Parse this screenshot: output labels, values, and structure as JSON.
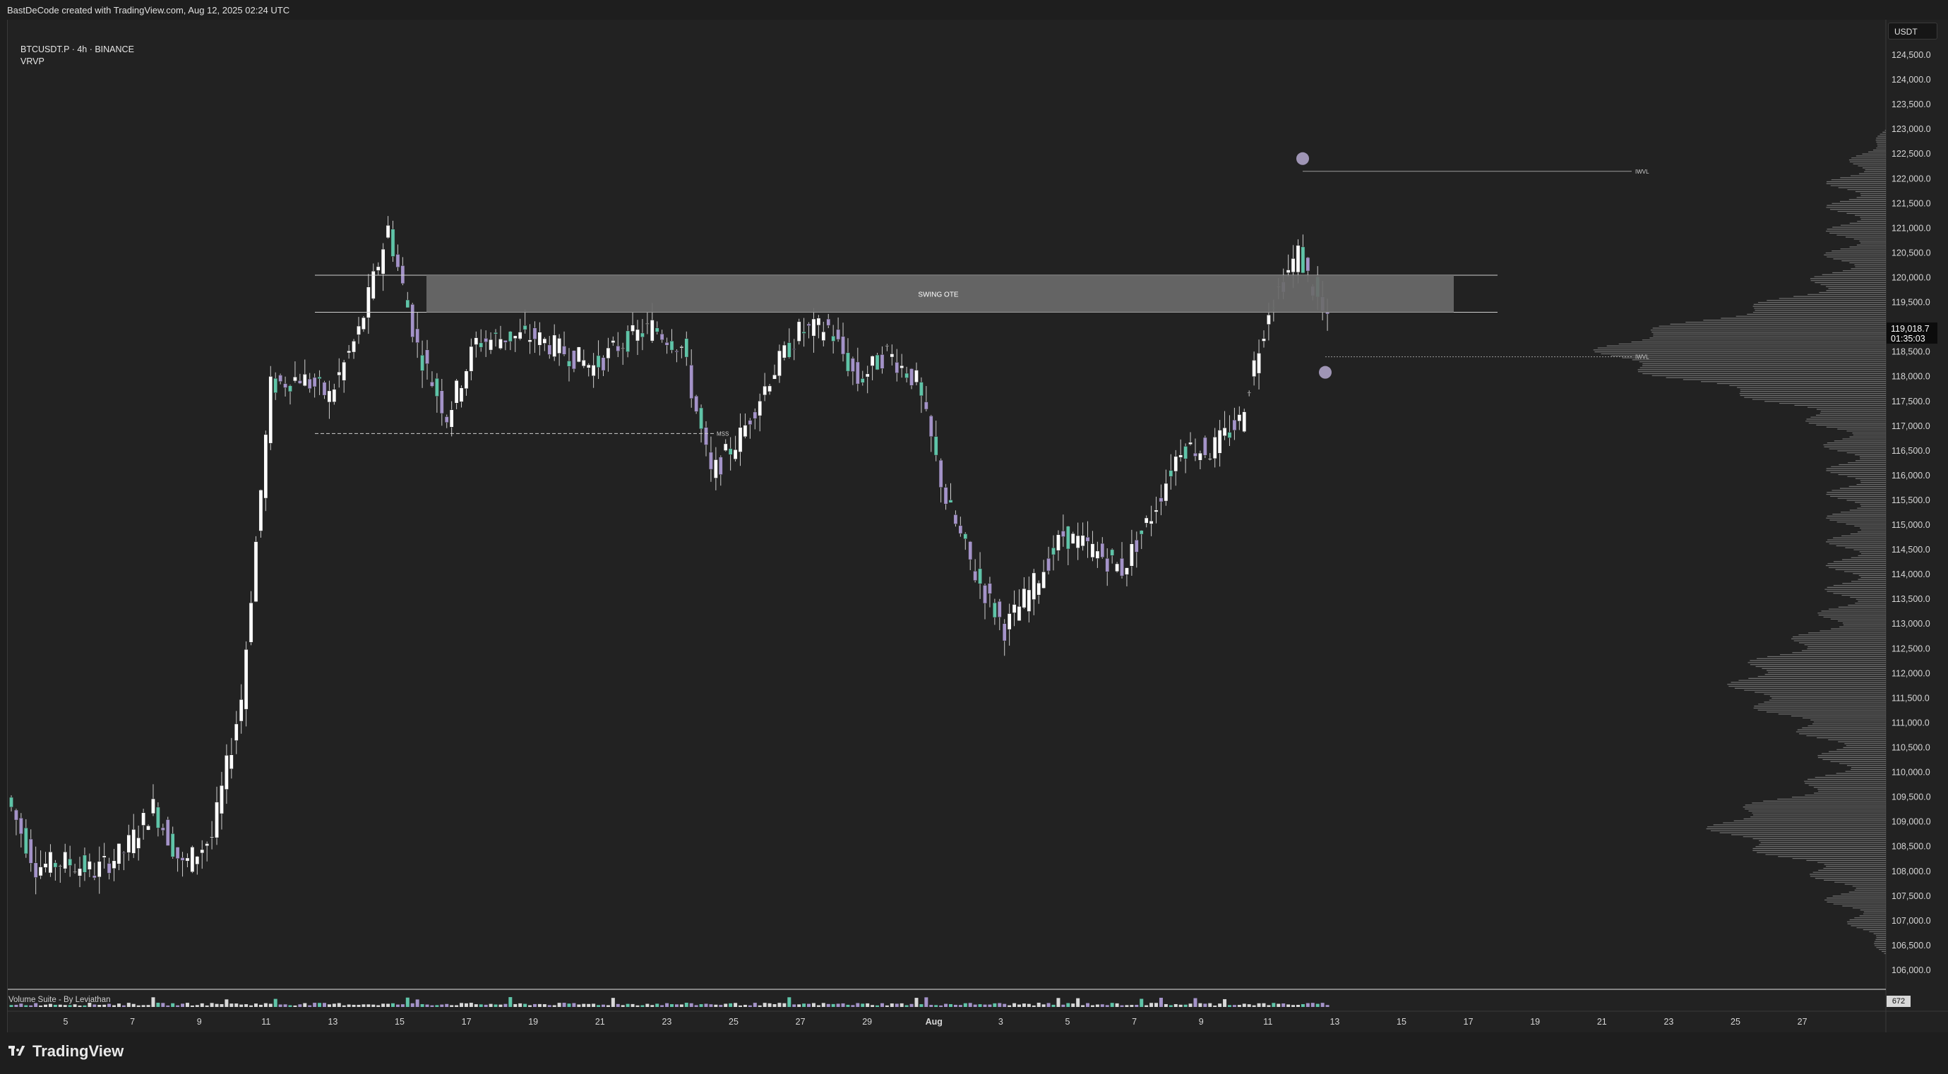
{
  "header": {
    "created_by": "BastDeCode created with TradingView.com, Aug 12, 2025 02:24 UTC"
  },
  "symbol": {
    "title": "BTCUSDT.P · 4h · BINANCE",
    "indicator": "VRVP"
  },
  "currency_button": "USDT",
  "current_price": {
    "price": "119,018.7",
    "countdown": "01:35:03"
  },
  "annotations": {
    "zone_label": "SWING OTE",
    "upper_label": "IWVL",
    "lower_label": "IWVL",
    "mss_label": "MSS"
  },
  "volume_indicator": {
    "label": "Volume Suite - By Leviathan",
    "value": "672"
  },
  "branding": {
    "name": "TradingView"
  },
  "colors": {
    "up": "#ffffff",
    "down_light": "#5fc4a8",
    "down": "#a493c9",
    "zone": "#6a6a6a",
    "background": "#222222"
  },
  "chart_data": {
    "type": "candlestick",
    "interval": "4h",
    "y_axis_labels": [
      "124,500.0",
      "124,000.0",
      "123,500.0",
      "123,000.0",
      "122,500.0",
      "122,000.0",
      "121,500.0",
      "121,000.0",
      "120,500.0",
      "120,000.0",
      "119,500.0",
      "118,500.0",
      "118,000.0",
      "117,500.0",
      "117,000.0",
      "116,500.0",
      "116,000.0",
      "115,500.0",
      "115,000.0",
      "114,500.0",
      "114,000.0",
      "113,500.0",
      "113,000.0",
      "112,500.0",
      "112,000.0",
      "111,500.0",
      "111,000.0",
      "110,500.0",
      "110,000.0",
      "109,500.0",
      "109,000.0",
      "108,500.0",
      "108,000.0",
      "107,500.0",
      "107,000.0",
      "106,500.0",
      "106,000.0"
    ],
    "ylim": [
      105800,
      124600
    ],
    "x_axis_labels": [
      "5",
      "7",
      "9",
      "11",
      "13",
      "15",
      "17",
      "19",
      "21",
      "23",
      "25",
      "27",
      "29",
      "Aug",
      "3",
      "5",
      "7",
      "9",
      "11",
      "13",
      "15",
      "17",
      "19",
      "21",
      "23",
      "25",
      "27"
    ],
    "zone": {
      "label": "SWING OTE",
      "from": 119300,
      "to": 120050
    },
    "levels": [
      {
        "label": "IWVL",
        "price": 122150
      },
      {
        "label": "IWVL",
        "price": 118400
      },
      {
        "label": "MSS",
        "price": 116850
      }
    ],
    "daily_path": [
      109500,
      108100,
      108200,
      108000,
      108400,
      109300,
      108100,
      108700,
      111500,
      117800,
      118000,
      117600,
      118900,
      121000,
      118600,
      117200,
      118700,
      118800,
      118800,
      118500,
      118200,
      118700,
      119000,
      118600,
      116000,
      116800,
      118000,
      118900,
      119000,
      117900,
      118500,
      117900,
      115500,
      114000,
      112900,
      113800,
      114800,
      114500,
      114100,
      115200,
      116600,
      116500,
      117100,
      119400,
      120500,
      119050
    ],
    "volume_profile_poc": 118500
  }
}
